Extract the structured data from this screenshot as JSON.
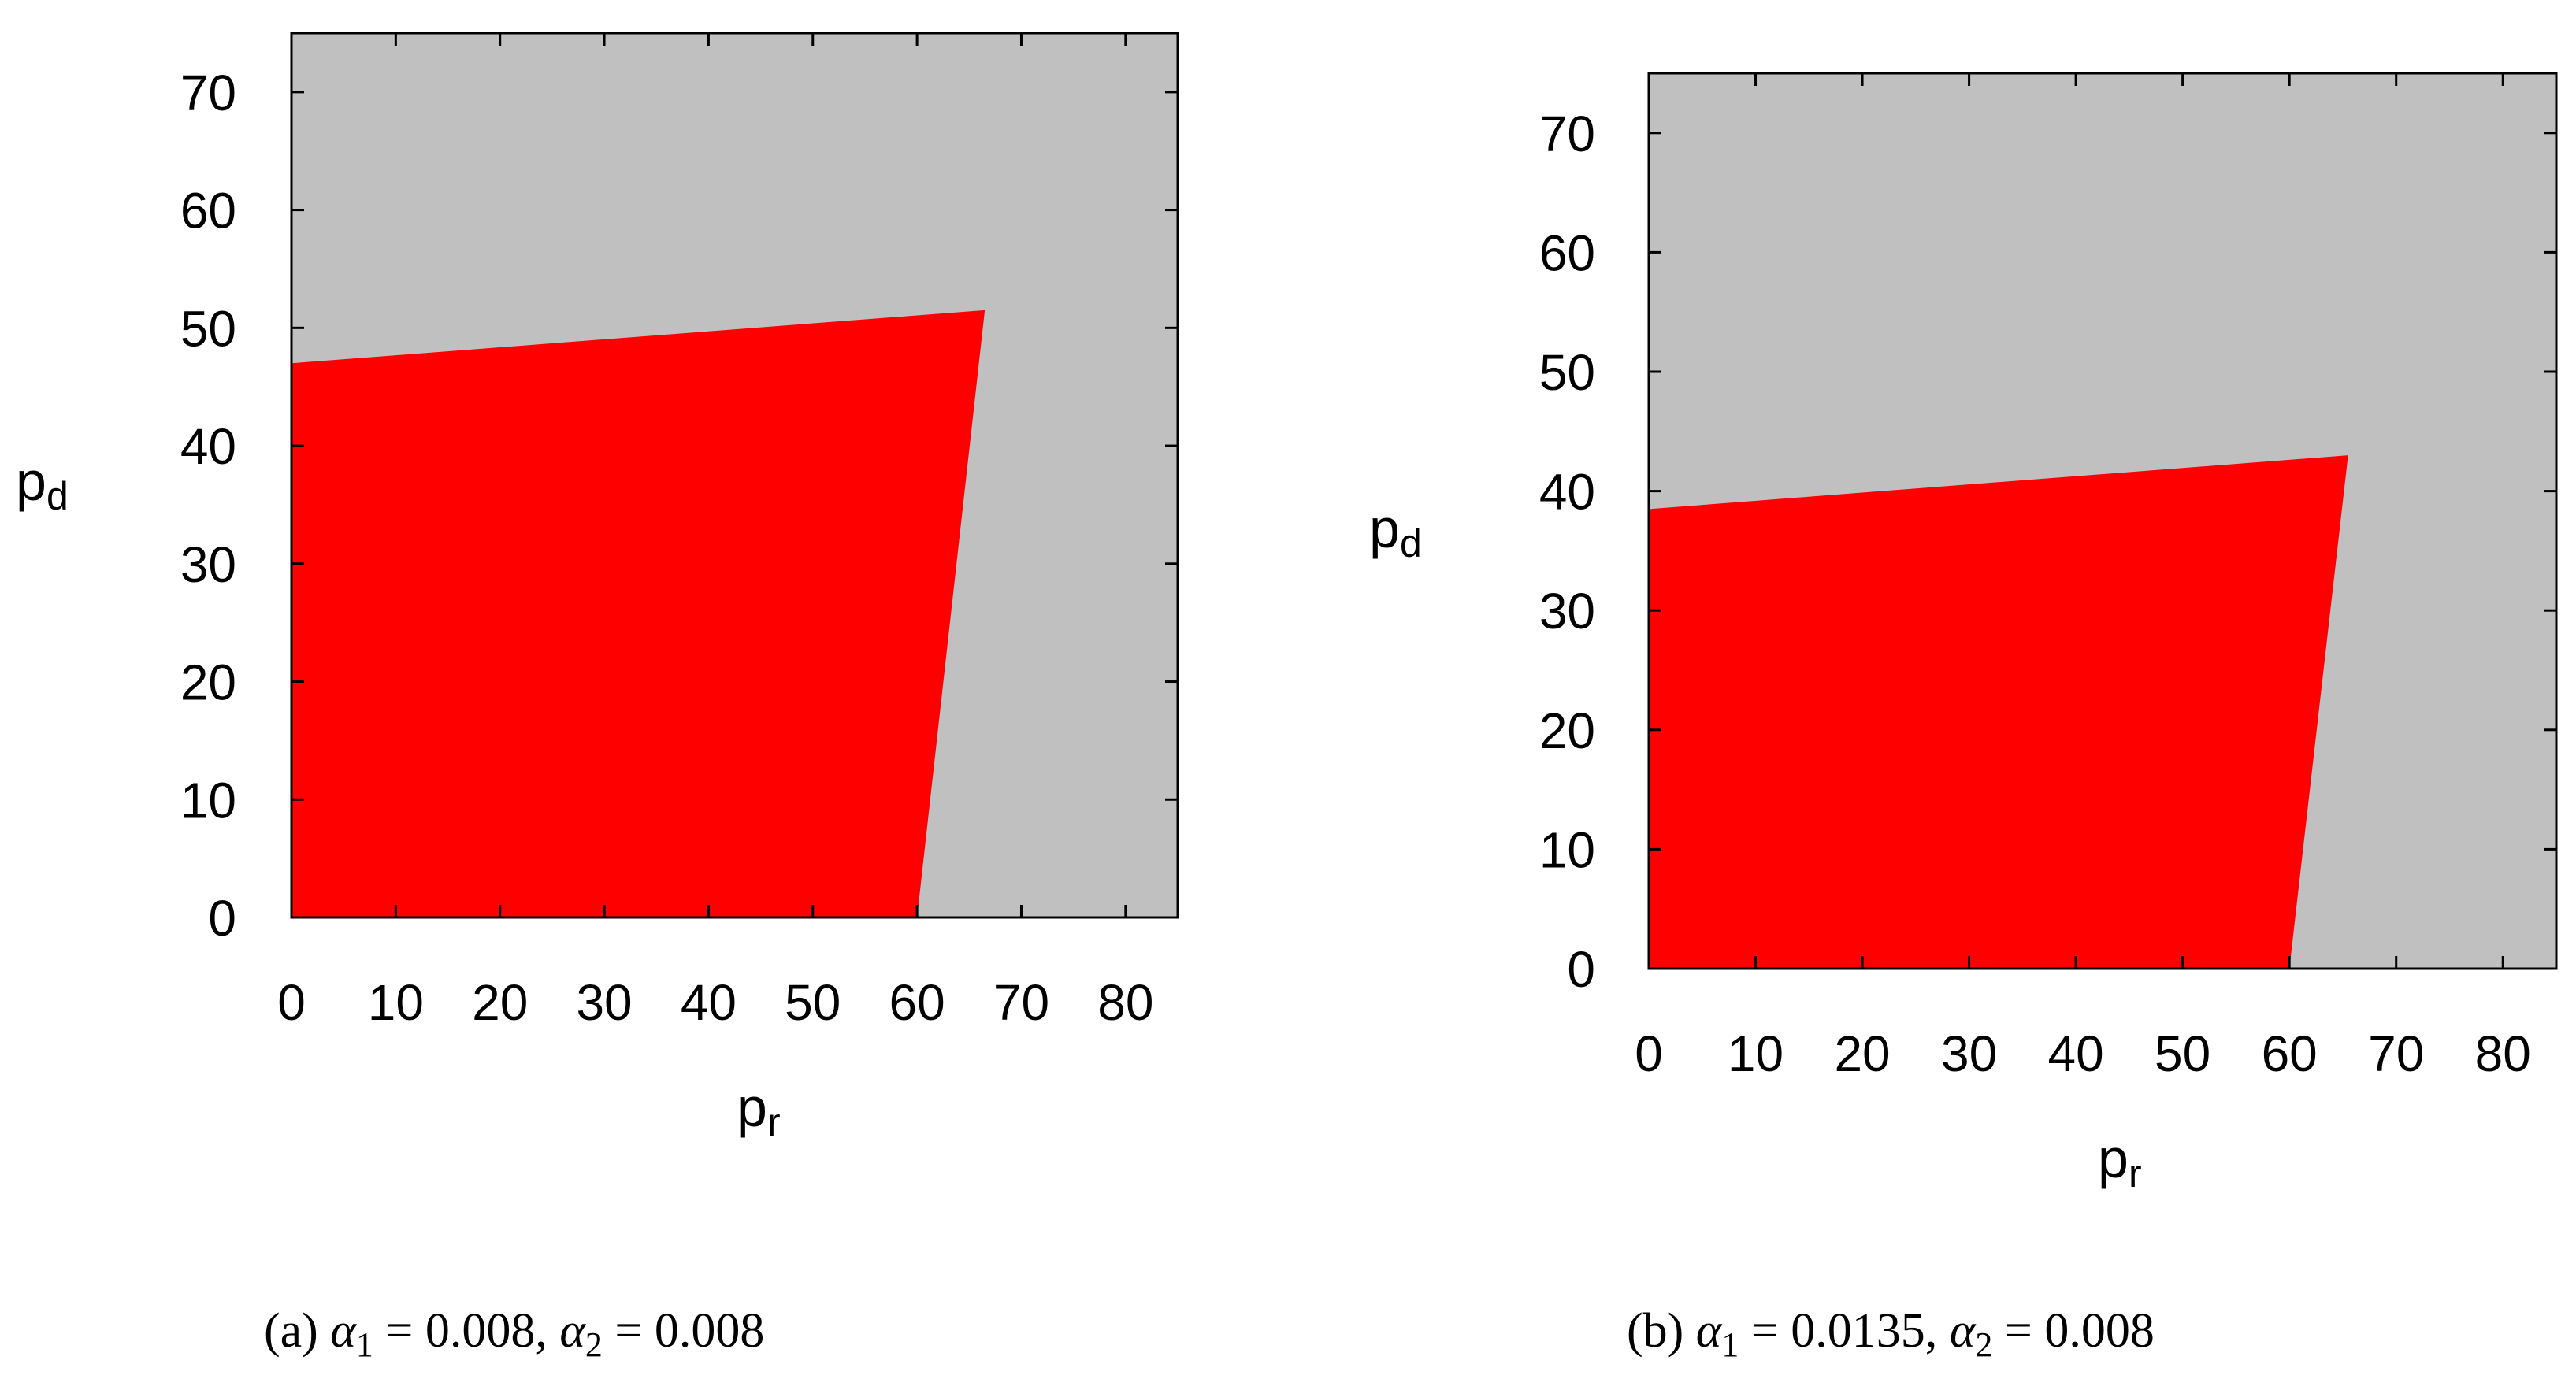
{
  "chart_data": [
    {
      "type": "area",
      "panel_letter": "a",
      "xlabel": "p",
      "xlabel_sub": "r",
      "ylabel": "p",
      "ylabel_sub": "d",
      "xlim": [
        0,
        85
      ],
      "ylim": [
        0,
        75
      ],
      "xticks": [
        0,
        10,
        20,
        30,
        40,
        50,
        60,
        70,
        80
      ],
      "yticks": [
        0,
        10,
        20,
        30,
        40,
        50,
        60,
        70
      ],
      "background_color": "#c0c0c0",
      "region_color": "#ff0000",
      "region_polygon": [
        [
          0,
          0
        ],
        [
          60,
          0
        ],
        [
          66.5,
          51.5
        ],
        [
          0,
          47
        ]
      ],
      "caption": {
        "letter": "(a)",
        "alpha1": "0.008",
        "alpha2": "0.008"
      }
    },
    {
      "type": "area",
      "panel_letter": "b",
      "xlabel": "p",
      "xlabel_sub": "r",
      "ylabel": "p",
      "ylabel_sub": "d",
      "xlim": [
        0,
        85
      ],
      "ylim": [
        0,
        75
      ],
      "xticks": [
        0,
        10,
        20,
        30,
        40,
        50,
        60,
        70,
        80
      ],
      "yticks": [
        0,
        10,
        20,
        30,
        40,
        50,
        60,
        70
      ],
      "background_color": "#c0c0c0",
      "region_color": "#ff0000",
      "region_polygon": [
        [
          0,
          0
        ],
        [
          60,
          0
        ],
        [
          65.5,
          43
        ],
        [
          0,
          38.5
        ]
      ],
      "caption": {
        "letter": "(b)",
        "alpha1": "0.0135",
        "alpha2": "0.008"
      }
    }
  ]
}
